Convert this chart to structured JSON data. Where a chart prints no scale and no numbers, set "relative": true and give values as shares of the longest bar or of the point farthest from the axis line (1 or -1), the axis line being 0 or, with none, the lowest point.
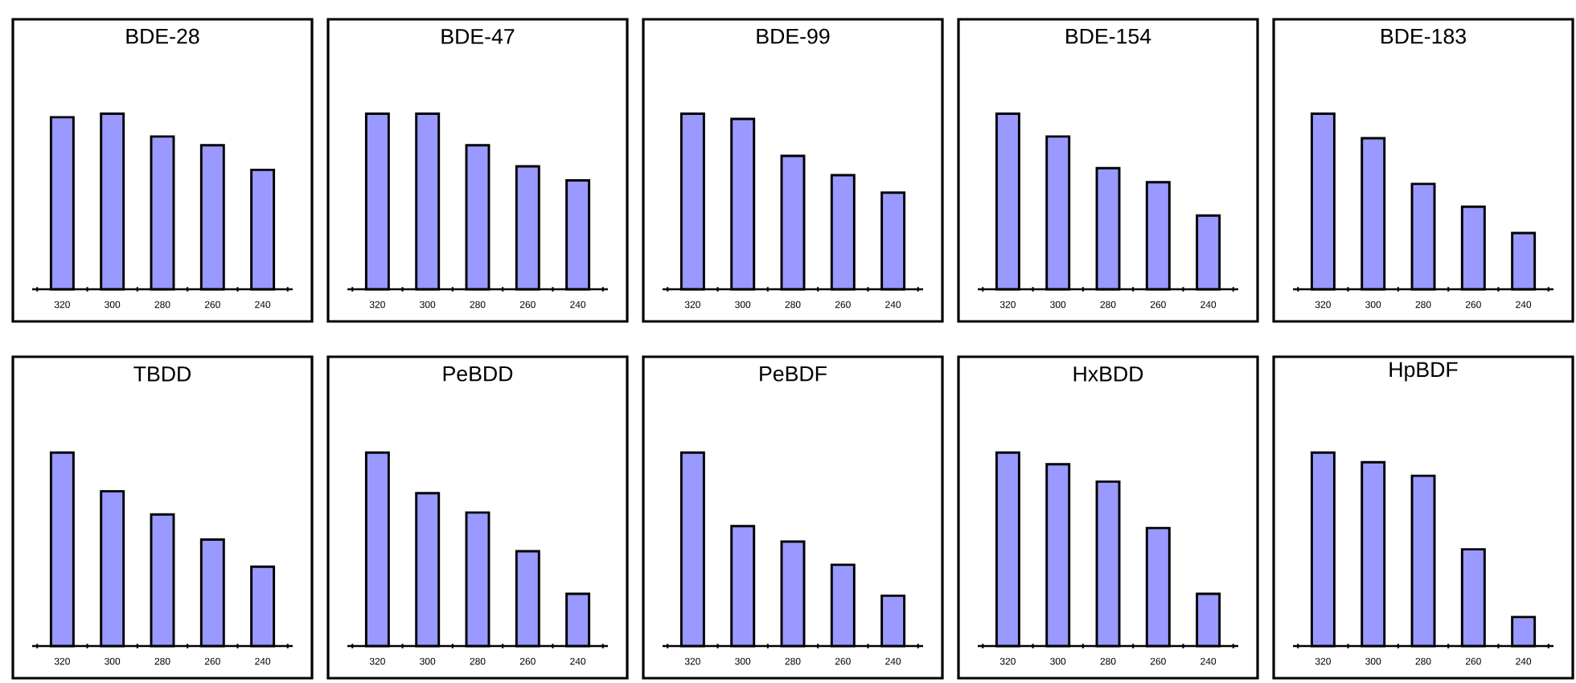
{
  "chart_data": [
    {
      "type": "bar",
      "title": "BDE-28",
      "categories": [
        "320",
        "300",
        "280",
        "260",
        "240"
      ],
      "values": [
        0.98,
        1,
        0.87,
        0.82,
        0.68
      ],
      "color": "#9999ff",
      "relative": true
    },
    {
      "type": "bar",
      "title": "BDE-47",
      "categories": [
        "320",
        "300",
        "280",
        "260",
        "240"
      ],
      "values": [
        1,
        1,
        0.82,
        0.7,
        0.62
      ],
      "color": "#9999ff",
      "relative": true
    },
    {
      "type": "bar",
      "title": "BDE-99",
      "categories": [
        "320",
        "300",
        "280",
        "260",
        "240"
      ],
      "values": [
        1,
        0.97,
        0.76,
        0.65,
        0.55
      ],
      "color": "#9999ff",
      "relative": true
    },
    {
      "type": "bar",
      "title": "BDE-154",
      "categories": [
        "320",
        "300",
        "280",
        "260",
        "240"
      ],
      "values": [
        1,
        0.87,
        0.69,
        0.61,
        0.42
      ],
      "color": "#9999ff",
      "relative": true
    },
    {
      "type": "bar",
      "title": "BDE-183",
      "categories": [
        "320",
        "300",
        "280",
        "260",
        "240"
      ],
      "values": [
        1,
        0.86,
        0.6,
        0.47,
        0.32
      ],
      "color": "#9999ff",
      "relative": true
    },
    {
      "type": "bar",
      "title": "TBDD",
      "categories": [
        "320",
        "300",
        "280",
        "260",
        "240"
      ],
      "values": [
        1,
        0.8,
        0.68,
        0.55,
        0.41
      ],
      "color": "#9999ff",
      "relative": true
    },
    {
      "type": "bar",
      "title": "PeBDD",
      "categories": [
        "320",
        "300",
        "280",
        "260",
        "240"
      ],
      "values": [
        1,
        0.79,
        0.69,
        0.49,
        0.27
      ],
      "color": "#9999ff",
      "relative": true
    },
    {
      "type": "bar",
      "title": "PeBDF",
      "categories": [
        "320",
        "300",
        "280",
        "260",
        "240"
      ],
      "values": [
        1,
        0.62,
        0.54,
        0.42,
        0.26
      ],
      "color": "#9999ff",
      "relative": true
    },
    {
      "type": "bar",
      "title": "HxBDD",
      "categories": [
        "320",
        "300",
        "280",
        "260",
        "240"
      ],
      "values": [
        1,
        0.94,
        0.85,
        0.61,
        0.27
      ],
      "color": "#9999ff",
      "relative": true
    },
    {
      "type": "bar",
      "title": "HpBDF",
      "categories": [
        "320",
        "300",
        "280",
        "260",
        "240"
      ],
      "values": [
        1,
        0.95,
        0.88,
        0.5,
        0.15
      ],
      "color": "#9999ff",
      "relative": true
    }
  ]
}
